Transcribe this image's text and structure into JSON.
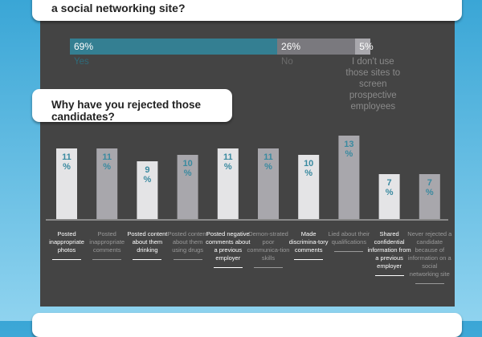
{
  "question1": {
    "text": "a social networking site?"
  },
  "answers": [
    {
      "pct": "69%",
      "value": 69,
      "label": "Yes",
      "color": "#347f92",
      "label_color": "#2e6b7a"
    },
    {
      "pct": "26%",
      "value": 26,
      "label": "No",
      "color": "#7a797e",
      "label_color": "#6b6b6b"
    },
    {
      "pct": "5%",
      "value": 5,
      "label": "I don't use those sites to screen prospective employees",
      "color": "#a9a8ad",
      "label_color": "#8a8a8a"
    }
  ],
  "question2": {
    "text": "Why have you rejected those candidates?"
  },
  "question3": {
    "text": ""
  },
  "chart_data": {
    "type": "bar",
    "title": "Why have you rejected those candidates?",
    "categories": [
      "Posted inappropriate photos",
      "Posted inappropriate comments",
      "Posted content about them drinking",
      "Posted content about them using drugs",
      "Posted negative comments about a previous employer",
      "Demon-strated poor communica-tion skills",
      "Made discrimina-tory comments",
      "Lied about their qualifications",
      "Shared confidential information from a previous employer",
      "Never rejected a candidate because of information on a social networking site"
    ],
    "values": [
      11,
      11,
      9,
      10,
      11,
      11,
      10,
      13,
      7,
      7
    ],
    "value_labels": [
      "11 %",
      "11 %",
      "9 %",
      "10 %",
      "11 %",
      "11 %",
      "10 %",
      "13 %",
      "7 %",
      "7 %"
    ],
    "ylim": [
      0,
      13
    ],
    "grid": false,
    "colors": {
      "light": "#e4e4e6",
      "dark": "#a8a7ac",
      "value_label": "#3a8aa0",
      "light_text": "#ffffff",
      "dark_text": "#9a9a9a"
    }
  }
}
